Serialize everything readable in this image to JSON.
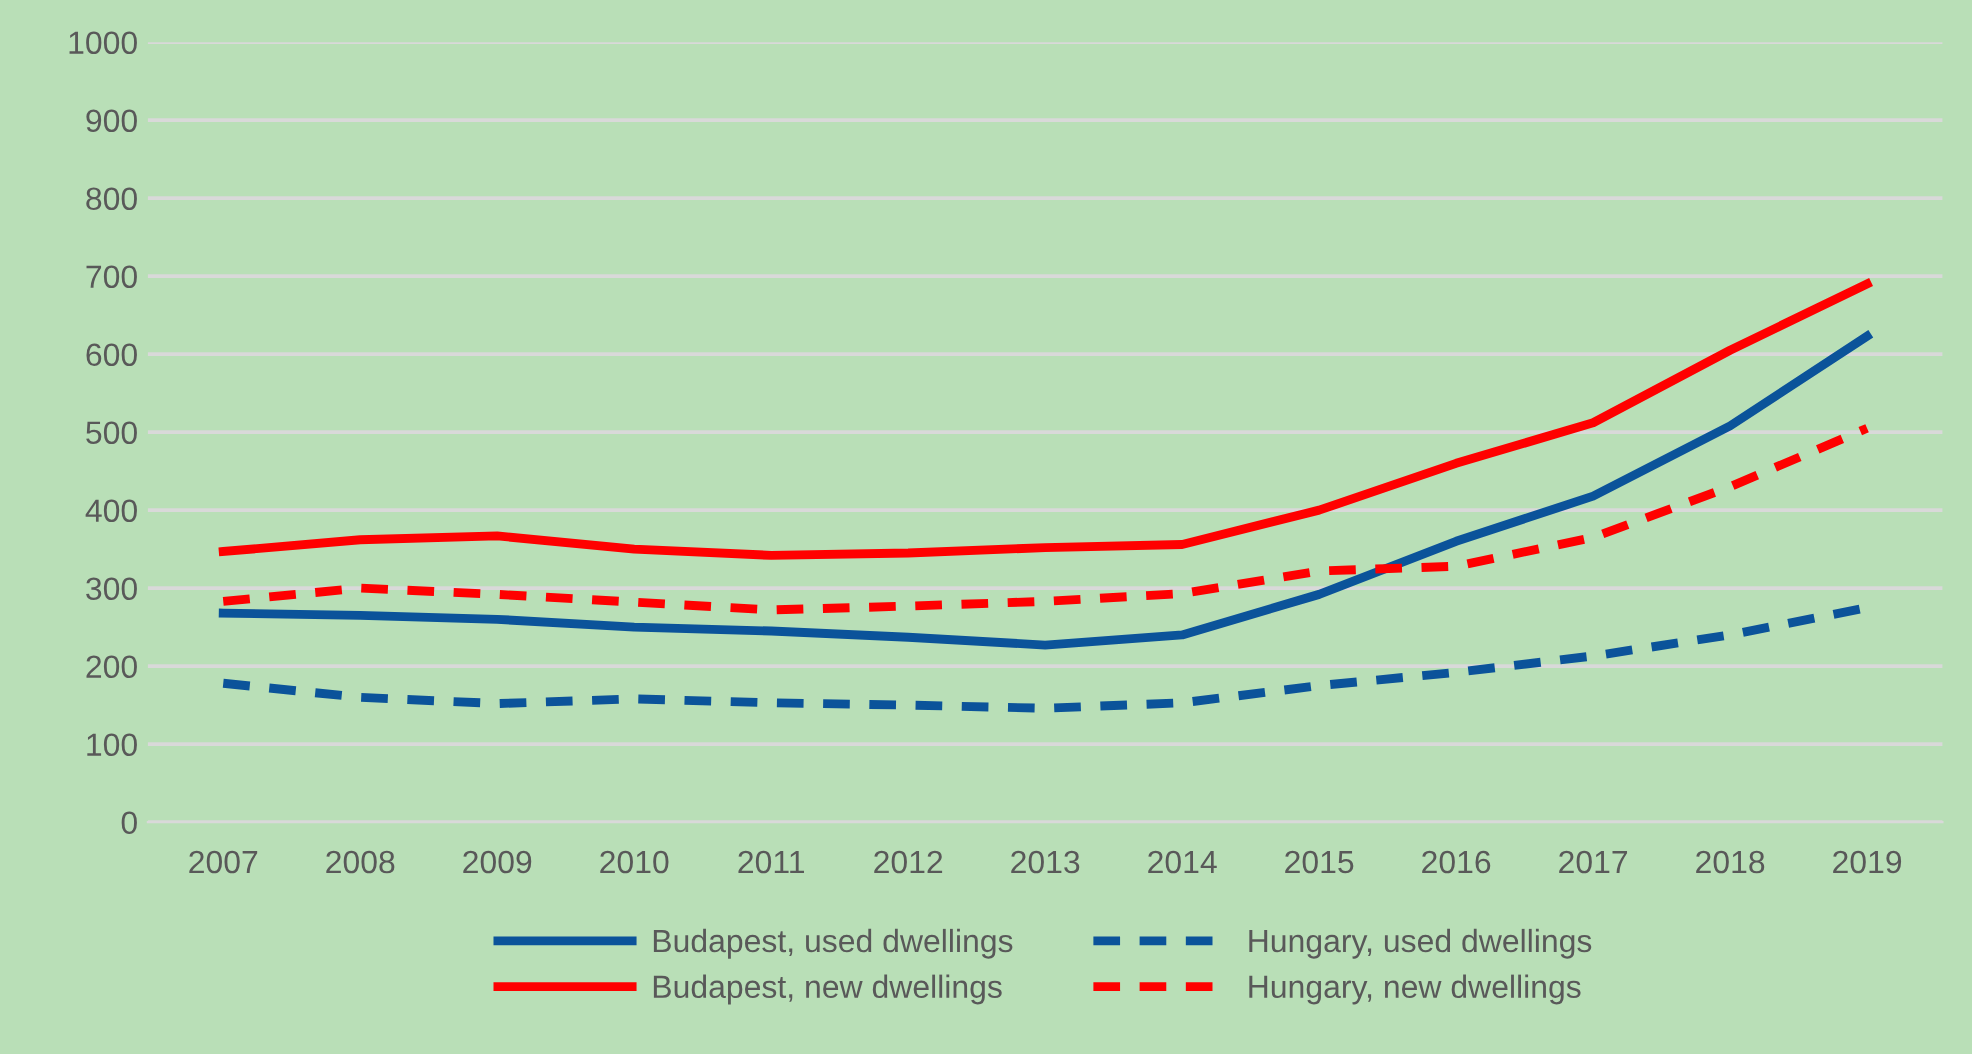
{
  "chart_data": {
    "type": "line",
    "categories": [
      "2007",
      "2008",
      "2009",
      "2010",
      "2011",
      "2012",
      "2013",
      "2014",
      "2015",
      "2016",
      "2017",
      "2018",
      "2019"
    ],
    "series": [
      {
        "name": "Budapest, used dwellings",
        "color": "#0b539a",
        "line_style": "solid",
        "values": [
          268,
          265,
          260,
          250,
          245,
          237,
          227,
          240,
          292,
          360,
          418,
          508,
          623
        ]
      },
      {
        "name": "Hungary, used dwellings",
        "color": "#0b539a",
        "line_style": "dashed",
        "values": [
          178,
          160,
          152,
          158,
          153,
          150,
          146,
          153,
          175,
          192,
          213,
          240,
          275
        ]
      },
      {
        "name": "Budapest, new dwellings",
        "color": "#ff0000",
        "line_style": "solid",
        "values": [
          347,
          362,
          367,
          350,
          342,
          345,
          352,
          356,
          400,
          460,
          512,
          605,
          690
        ]
      },
      {
        "name": "Hungary, new dwellings",
        "color": "#ff0000",
        "line_style": "dashed",
        "values": [
          283,
          300,
          292,
          282,
          272,
          277,
          283,
          293,
          322,
          328,
          365,
          430,
          505
        ]
      }
    ],
    "ylim": [
      0,
      1000
    ],
    "yticks": [
      0,
      100,
      200,
      300,
      400,
      500,
      600,
      700,
      800,
      900,
      1000
    ],
    "grid": "y",
    "legend": "bottom",
    "marker": "none"
  }
}
